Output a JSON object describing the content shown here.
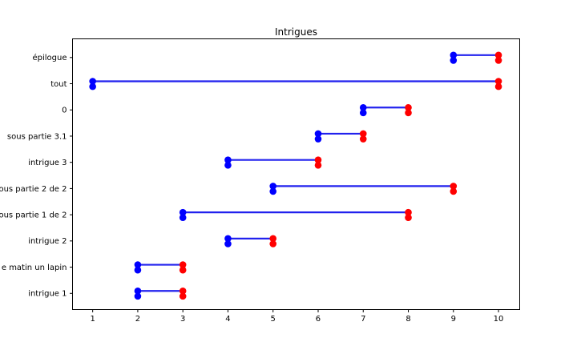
{
  "figure": {
    "background": "#ffffff"
  },
  "chart_data": {
    "type": "line",
    "subtype": "dumbbell-gantt",
    "title": "Intrigues",
    "xlabel": "",
    "ylabel": "",
    "grid": false,
    "legend": "none",
    "xlim": [
      0.553,
      10.47
    ],
    "x_ticks": [
      1,
      2,
      3,
      4,
      5,
      6,
      7,
      8,
      9,
      10
    ],
    "categories": [
      "épilogue",
      "tout",
      "0",
      "sous partie 3.1",
      "intrigue 3",
      "ous partie 2 de 2",
      "ous partie 1 de 2",
      "intrigue 2",
      "e matin un lapin",
      "intrigue 1"
    ],
    "segments": [
      {
        "label": "épilogue",
        "start": 9,
        "end": 10
      },
      {
        "label": "tout",
        "start": 1,
        "end": 10
      },
      {
        "label": "0",
        "start": 7,
        "end": 8
      },
      {
        "label": "sous partie 3.1",
        "start": 6,
        "end": 7
      },
      {
        "label": "intrigue 3",
        "start": 4,
        "end": 6
      },
      {
        "label": "ous partie 2 de 2",
        "start": 5,
        "end": 9
      },
      {
        "label": "ous partie 1 de 2",
        "start": 3,
        "end": 8
      },
      {
        "label": "intrigue 2",
        "start": 4,
        "end": 5
      },
      {
        "label": "e matin un lapin",
        "start": 2,
        "end": 3
      },
      {
        "label": "intrigue 1",
        "start": 2,
        "end": 3
      }
    ],
    "colors": {
      "start_marker": "#0000ff",
      "end_marker": "#ff0000",
      "segment_line": "#2222ee",
      "axis": "#000000",
      "text": "#000000",
      "background": "#ffffff"
    }
  }
}
